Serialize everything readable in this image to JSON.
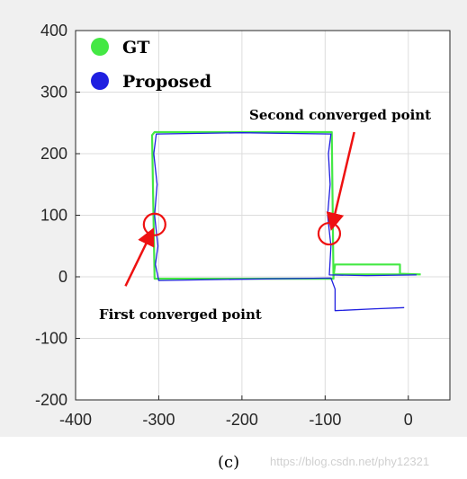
{
  "chart_data": {
    "type": "line",
    "xlim": [
      -400,
      50
    ],
    "ylim": [
      -200,
      400
    ],
    "xticks": [
      -400,
      -300,
      -200,
      -100,
      0
    ],
    "yticks": [
      -200,
      -100,
      0,
      100,
      200,
      300,
      400
    ],
    "grid": true,
    "legend_position": "top-left",
    "series": [
      {
        "name": "GT",
        "color": "#44e844",
        "x": [
          15,
          -90,
          -90,
          -92,
          -305,
          -308,
          -305,
          -90,
          -90,
          -88,
          -10,
          -10,
          15
        ],
        "y": [
          4,
          4,
          0,
          235,
          235,
          230,
          -3,
          -3,
          0,
          20,
          20,
          5,
          4
        ]
      },
      {
        "name": "Proposed",
        "color": "#1f1fe0",
        "x": [
          10,
          -50,
          -95,
          -93,
          -97,
          -94,
          -96,
          -93,
          -200,
          -303,
          -306,
          -302,
          -305,
          -301,
          -304,
          -300,
          -200,
          -93,
          -88,
          -88,
          -40,
          -5
        ],
        "y": [
          3,
          2,
          3,
          50,
          100,
          150,
          200,
          232,
          234,
          232,
          200,
          150,
          100,
          50,
          20,
          -6,
          -4,
          -2,
          -20,
          -55,
          -52,
          -50
        ]
      }
    ],
    "annotations": [
      {
        "text": "First converged point",
        "circle_at": [
          -305,
          85
        ],
        "arrow_from": [
          -340,
          -15
        ]
      },
      {
        "text": "Second converged point",
        "circle_at": [
          -95,
          70
        ],
        "arrow_from": [
          -65,
          235
        ]
      }
    ]
  },
  "caption": "(c)",
  "watermark": "https://blog.csdn.net/phy12321"
}
